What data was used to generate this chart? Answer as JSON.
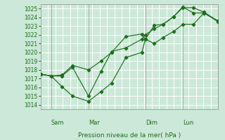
{
  "bg_color": "#cce8d8",
  "grid_color": "#ffffff",
  "line_color": "#1a6e1a",
  "ylim": [
    1013.5,
    1025.5
  ],
  "yticks": [
    1014,
    1015,
    1016,
    1017,
    1018,
    1019,
    1020,
    1021,
    1022,
    1023,
    1024,
    1025
  ],
  "xlabel": "Pression niveau de la mer( hPa )",
  "day_labels": [
    "Sam",
    "Mar",
    "Dim",
    "Lun"
  ],
  "day_positions": [
    0.06,
    0.27,
    0.59,
    0.8
  ],
  "vline_positions": [
    0.06,
    0.27,
    0.59,
    0.8
  ],
  "line1_x": [
    0.0,
    0.06,
    0.12,
    0.18,
    0.27,
    0.34,
    0.4,
    0.48,
    0.57,
    0.59,
    0.64,
    0.69,
    0.75,
    0.8,
    0.86,
    0.92,
    1.0
  ],
  "line1_y": [
    1017.5,
    1017.3,
    1017.3,
    1018.3,
    1015.0,
    1017.8,
    1020.1,
    1020.5,
    1021.5,
    1022.0,
    1022.7,
    1023.2,
    1024.1,
    1025.1,
    1025.1,
    1024.6,
    1023.5
  ],
  "line2_x": [
    0.0,
    0.06,
    0.12,
    0.18,
    0.27,
    0.34,
    0.4,
    0.48,
    0.57,
    0.59,
    0.64,
    0.69,
    0.75,
    0.8,
    0.86,
    0.92,
    1.0
  ],
  "line2_y": [
    1017.5,
    1017.3,
    1016.1,
    1015.0,
    1014.4,
    1015.5,
    1016.5,
    1019.4,
    1020.0,
    1021.5,
    1021.0,
    1021.7,
    1022.4,
    1023.2,
    1023.2,
    1024.5,
    1023.6
  ],
  "line3_x": [
    0.0,
    0.06,
    0.12,
    0.18,
    0.27,
    0.34,
    0.4,
    0.48,
    0.57,
    0.59,
    0.64,
    0.69,
    0.75,
    0.8,
    0.86,
    0.92,
    1.0
  ],
  "line3_y": [
    1017.5,
    1017.3,
    1017.4,
    1018.5,
    1018.0,
    1019.0,
    1020.0,
    1021.8,
    1022.1,
    1021.5,
    1023.1,
    1023.2,
    1024.1,
    1025.2,
    1024.5,
    1024.5,
    1023.5
  ]
}
